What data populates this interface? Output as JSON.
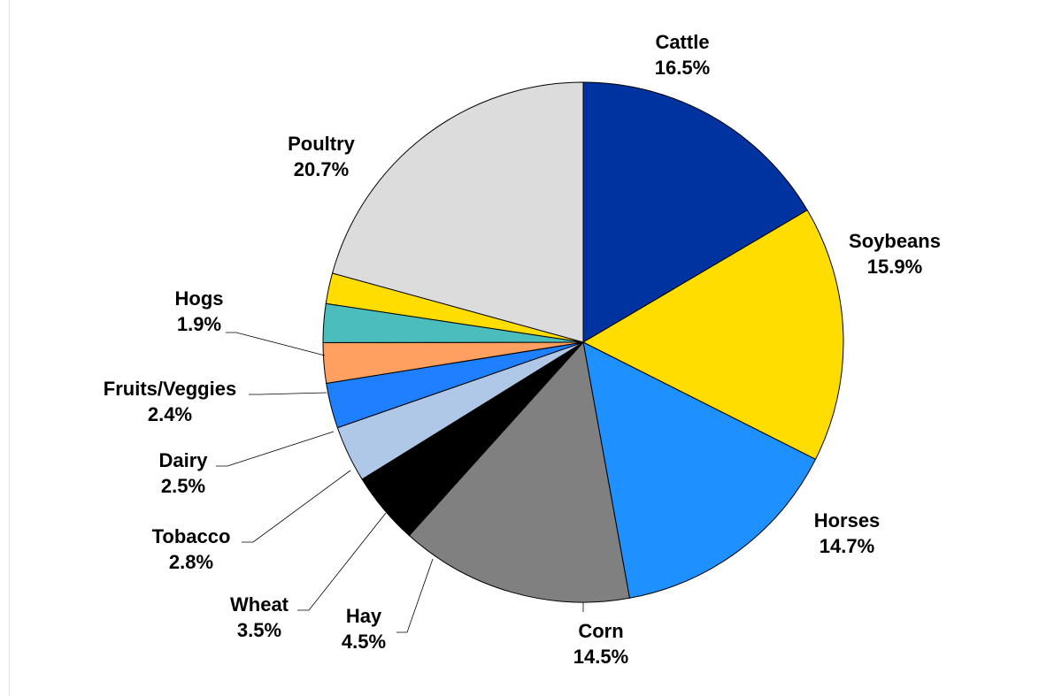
{
  "chart_data": {
    "type": "pie",
    "title": "",
    "start_angle_deg": 0,
    "direction": "clockwise",
    "slices": [
      {
        "label": "Cattle",
        "value": 16.5,
        "display": "16.5%",
        "color": "#0033a0"
      },
      {
        "label": "Soybeans",
        "value": 15.9,
        "display": "15.9%",
        "color": "#ffdd00"
      },
      {
        "label": "Horses",
        "value": 14.7,
        "display": "14.7%",
        "color": "#1e90ff"
      },
      {
        "label": "Corn",
        "value": 14.5,
        "display": "14.5%",
        "color": "#808080"
      },
      {
        "label": "Hay",
        "value": 4.5,
        "display": "4.5%",
        "color": "#000000"
      },
      {
        "label": "Wheat",
        "value": 3.5,
        "display": "3.5%",
        "color": "#b0c8e8"
      },
      {
        "label": "Tobacco",
        "value": 2.8,
        "display": "2.8%",
        "color": "#1e7fff"
      },
      {
        "label": "Dairy",
        "value": 2.5,
        "display": "2.5%",
        "color": "#ffa060"
      },
      {
        "label": "Fruits/Veggies",
        "value": 2.4,
        "display": "2.4%",
        "color": "#4cbdbd"
      },
      {
        "label": "Hogs",
        "value": 1.9,
        "display": "1.9%",
        "color": "#ffdd00"
      },
      {
        "label": "Poultry",
        "value": 20.7,
        "display": "20.7%",
        "color": "#dcdcdc"
      }
    ],
    "legend": "none"
  }
}
